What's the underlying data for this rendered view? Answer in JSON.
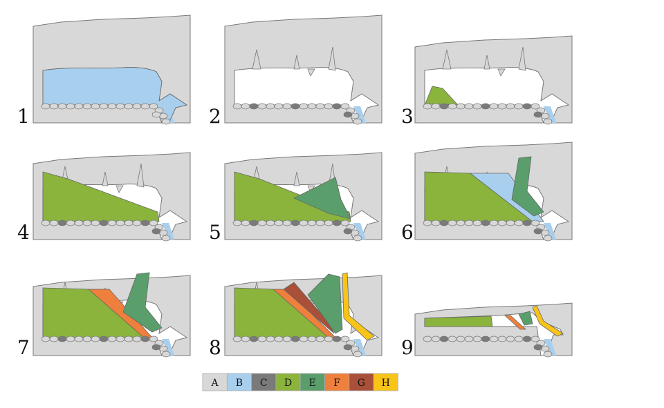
{
  "panels": [
    {
      "label": "1"
    },
    {
      "label": "2"
    },
    {
      "label": "3"
    },
    {
      "label": "4"
    },
    {
      "label": "5"
    },
    {
      "label": "6"
    },
    {
      "label": "7"
    },
    {
      "label": "8"
    },
    {
      "label": "9"
    }
  ],
  "legend": [
    {
      "label": "A",
      "color": "#d8d8d8"
    },
    {
      "label": "B",
      "color": "#a8cfee"
    },
    {
      "label": "C",
      "color": "#7a7a7a"
    },
    {
      "label": "D",
      "color": "#8ab43c"
    },
    {
      "label": "E",
      "color": "#5a9e6c"
    },
    {
      "label": "F",
      "color": "#ef7f3c"
    },
    {
      "label": "G",
      "color": "#a8503a"
    },
    {
      "label": "H",
      "color": "#f7c417"
    }
  ]
}
